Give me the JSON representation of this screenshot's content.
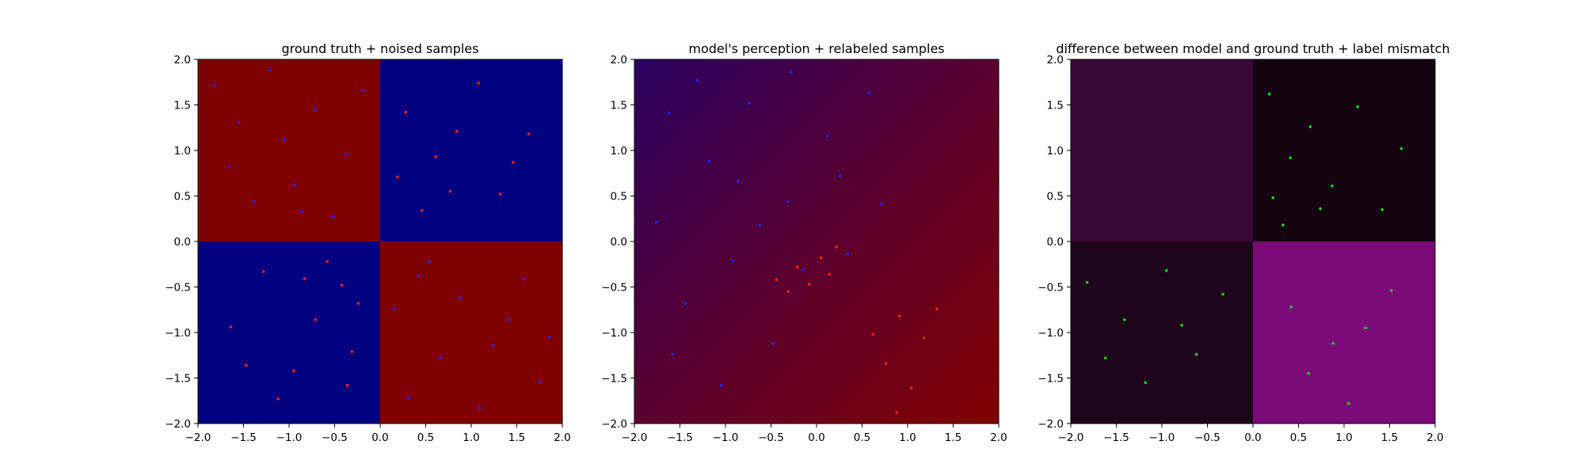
{
  "chart_data": [
    {
      "type": "scatter",
      "title": "ground truth + noised samples",
      "xlim": [
        -2.0,
        2.0
      ],
      "ylim": [
        -2.0,
        2.0
      ],
      "xticks": [
        "−2.0",
        "−1.5",
        "−1.0",
        "−0.5",
        "0.0",
        "0.5",
        "1.0",
        "1.5",
        "2.0"
      ],
      "yticks": [
        "−2.0",
        "−1.5",
        "−1.0",
        "−0.5",
        "0.0",
        "0.5",
        "1.0",
        "1.5",
        "2.0"
      ],
      "background": {
        "kind": "quadrants",
        "cells": [
          {
            "x": [
              -2,
              0
            ],
            "y": [
              0,
              2
            ],
            "color": "#800000"
          },
          {
            "x": [
              0,
              2
            ],
            "y": [
              0,
              2
            ],
            "color": "#000080"
          },
          {
            "x": [
              -2,
              0
            ],
            "y": [
              -2,
              0
            ],
            "color": "#000080"
          },
          {
            "x": [
              0,
              2
            ],
            "y": [
              -2,
              0
            ],
            "color": "#800000"
          }
        ]
      },
      "series": [
        {
          "color": "#2424ff",
          "points": [
            [
              -1.82,
              1.72
            ],
            [
              -1.55,
              1.31
            ],
            [
              -1.21,
              1.88
            ],
            [
              -0.94,
              0.62
            ],
            [
              -0.71,
              1.45
            ],
            [
              -0.38,
              0.96
            ],
            [
              -1.38,
              0.44
            ],
            [
              -0.52,
              0.27
            ],
            [
              -1.66,
              0.82
            ],
            [
              -0.19,
              1.66
            ],
            [
              -1.05,
              1.12
            ],
            [
              -0.86,
              0.33
            ],
            [
              0.42,
              -0.38
            ],
            [
              0.88,
              -0.62
            ],
            [
              1.24,
              -1.14
            ],
            [
              1.58,
              -0.41
            ],
            [
              0.31,
              -1.72
            ],
            [
              1.75,
              -1.55
            ],
            [
              0.66,
              -1.28
            ],
            [
              1.41,
              -0.86
            ],
            [
              0.15,
              -0.74
            ],
            [
              1.09,
              -1.83
            ],
            [
              0.54,
              -0.22
            ],
            [
              1.86,
              -1.05
            ]
          ]
        },
        {
          "color": "#ff2020",
          "points": [
            [
              0.28,
              1.42
            ],
            [
              0.61,
              0.93
            ],
            [
              0.84,
              1.21
            ],
            [
              1.32,
              0.52
            ],
            [
              1.63,
              1.18
            ],
            [
              0.46,
              0.34
            ],
            [
              1.08,
              1.74
            ],
            [
              0.19,
              0.71
            ],
            [
              0.77,
              0.55
            ],
            [
              1.46,
              0.87
            ],
            [
              -0.42,
              -0.48
            ],
            [
              -0.71,
              -0.86
            ],
            [
              -1.28,
              -0.33
            ],
            [
              -0.95,
              -1.42
            ],
            [
              -0.31,
              -1.21
            ],
            [
              -1.64,
              -0.94
            ],
            [
              -0.58,
              -0.22
            ],
            [
              -1.12,
              -1.73
            ],
            [
              -0.24,
              -0.68
            ],
            [
              -0.83,
              -0.41
            ],
            [
              -1.47,
              -1.36
            ],
            [
              -0.36,
              -1.58
            ]
          ]
        }
      ]
    },
    {
      "type": "scatter",
      "title": "model's perception + relabeled samples",
      "xlim": [
        -2.0,
        2.0
      ],
      "ylim": [
        -2.0,
        2.0
      ],
      "xticks": [
        "−2.0",
        "−1.5",
        "−1.0",
        "−0.5",
        "0.0",
        "0.5",
        "1.0",
        "1.5",
        "2.0"
      ],
      "yticks": [
        "−2.0",
        "−1.5",
        "−1.0",
        "−0.5",
        "0.0",
        "0.5",
        "1.0",
        "1.5",
        "2.0"
      ],
      "background": {
        "kind": "gradient",
        "colors": [
          "#2a0060",
          "#5a0030",
          "#800000"
        ]
      },
      "series": [
        {
          "color": "#2424ff",
          "points": [
            [
              -1.62,
              1.41
            ],
            [
              -1.18,
              0.88
            ],
            [
              -0.74,
              1.52
            ],
            [
              -0.31,
              0.44
            ],
            [
              0.12,
              1.16
            ],
            [
              -0.92,
              -0.21
            ],
            [
              -1.44,
              -0.68
            ],
            [
              -0.48,
              -1.12
            ],
            [
              0.26,
              0.72
            ],
            [
              -1.76,
              0.21
            ],
            [
              -0.15,
              -0.31
            ],
            [
              0.58,
              1.63
            ],
            [
              -1.05,
              -1.58
            ],
            [
              -0.62,
              0.18
            ],
            [
              0.34,
              -0.14
            ],
            [
              -1.31,
              1.77
            ],
            [
              0.71,
              0.41
            ],
            [
              -0.28,
              1.86
            ],
            [
              -1.58,
              -1.24
            ],
            [
              -0.86,
              0.66
            ]
          ]
        },
        {
          "color": "#ff2020",
          "points": [
            [
              -0.44,
              -0.42
            ],
            [
              -0.21,
              -0.28
            ],
            [
              0.05,
              -0.18
            ],
            [
              0.22,
              -0.06
            ],
            [
              -0.31,
              -0.55
            ],
            [
              0.14,
              -0.36
            ],
            [
              -0.08,
              -0.47
            ],
            [
              0.91,
              -0.82
            ],
            [
              1.18,
              -1.06
            ],
            [
              0.76,
              -1.34
            ],
            [
              1.04,
              -1.61
            ],
            [
              0.62,
              -1.02
            ],
            [
              1.32,
              -0.74
            ],
            [
              0.88,
              -1.88
            ]
          ]
        }
      ]
    },
    {
      "type": "scatter",
      "title": "difference between model and ground truth + label mismatch",
      "xlim": [
        -2.0,
        2.0
      ],
      "ylim": [
        -2.0,
        2.0
      ],
      "xticks": [
        "−2.0",
        "−1.5",
        "−1.0",
        "−0.5",
        "0.0",
        "0.5",
        "1.0",
        "1.5",
        "2.0"
      ],
      "yticks": [
        "−2.0",
        "−1.5",
        "−1.0",
        "−0.5",
        "0.0",
        "0.5",
        "1.0",
        "1.5",
        "2.0"
      ],
      "background": {
        "kind": "quadrants",
        "cells": [
          {
            "x": [
              -2,
              0
            ],
            "y": [
              0,
              2
            ],
            "color": "#3a0838"
          },
          {
            "x": [
              0,
              2
            ],
            "y": [
              0,
              2
            ],
            "color": "#140310"
          },
          {
            "x": [
              -2,
              0
            ],
            "y": [
              -2,
              0
            ],
            "color": "#1e0519"
          },
          {
            "x": [
              0,
              2
            ],
            "y": [
              -2,
              0
            ],
            "color": "#7a0a78"
          }
        ]
      },
      "series": [
        {
          "color": "#1fd01f",
          "points": [
            [
              0.22,
              0.48
            ],
            [
              0.41,
              0.92
            ],
            [
              0.63,
              1.26
            ],
            [
              0.87,
              0.61
            ],
            [
              1.15,
              1.48
            ],
            [
              1.42,
              0.35
            ],
            [
              0.33,
              0.18
            ],
            [
              0.74,
              0.36
            ],
            [
              1.63,
              1.02
            ],
            [
              0.18,
              1.62
            ],
            [
              -1.82,
              -0.45
            ],
            [
              -1.41,
              -0.86
            ],
            [
              -0.95,
              -0.32
            ],
            [
              -0.62,
              -1.24
            ],
            [
              -1.18,
              -1.55
            ],
            [
              -0.33,
              -0.58
            ],
            [
              -1.62,
              -1.28
            ],
            [
              -0.78,
              -0.92
            ],
            [
              0.42,
              -0.72
            ],
            [
              0.88,
              -1.12
            ],
            [
              1.24,
              -0.95
            ],
            [
              0.61,
              -1.45
            ],
            [
              1.05,
              -1.78
            ],
            [
              1.52,
              -0.54
            ]
          ]
        }
      ]
    }
  ]
}
